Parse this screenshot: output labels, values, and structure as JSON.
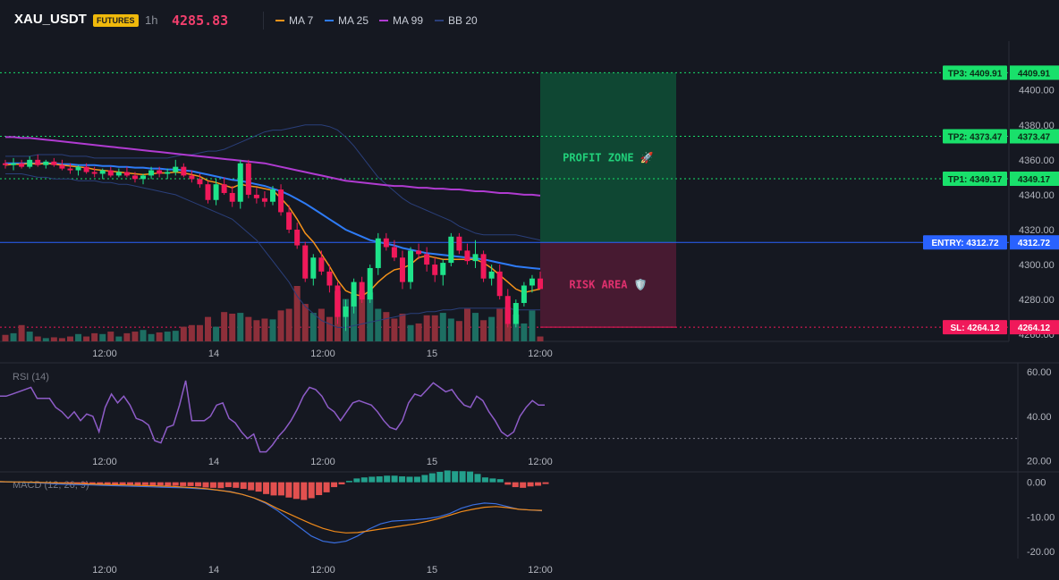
{
  "header": {
    "symbol": "XAU_USDT",
    "badge": "FUTURES",
    "interval": "1h",
    "last_price": "4285.83",
    "indicators": [
      {
        "label": "MA 7",
        "color": "#f7931a"
      },
      {
        "label": "MA 25",
        "color": "#2e7bf6"
      },
      {
        "label": "MA 99",
        "color": "#b03bd1"
      },
      {
        "label": "BB 20",
        "color": "#2a3f7a"
      }
    ]
  },
  "colors": {
    "up": "#1ee38a",
    "down": "#f0195a",
    "vol_up": "#1d6e62",
    "vol_down": "#8d2f3a",
    "tp_green": "#19e06b",
    "entry_blue": "#2962ff",
    "sl_red": "#f0195a",
    "profit_zone": "#0f4a35",
    "risk_zone": "#4a1a33",
    "rsi": "#8e5cc8",
    "macd_line": "#3a6fe0",
    "signal_line": "#f08a1a",
    "hist_pos": "#23a08c",
    "hist_neg": "#e2504f"
  },
  "chart_data": [
    {
      "type": "candlestick",
      "title": "XAU_USDT 1h",
      "x_tick_labels": [
        "12:00",
        "14",
        "12:00",
        "15",
        "12:00"
      ],
      "y_tick_labels": [
        "4400.00",
        "4380.00",
        "4360.00",
        "4340.00",
        "4320.00",
        "4300.00",
        "4280.00",
        "4260.00"
      ],
      "ylim": [
        4256,
        4428
      ],
      "candles": [
        [
          4358,
          4360,
          4355,
          4357
        ],
        [
          4357,
          4361,
          4354,
          4358
        ],
        [
          4358,
          4360,
          4355,
          4356
        ],
        [
          4356,
          4362,
          4355,
          4360
        ],
        [
          4360,
          4363,
          4356,
          4357
        ],
        [
          4357,
          4360,
          4355,
          4359
        ],
        [
          4359,
          4361,
          4356,
          4357
        ],
        [
          4357,
          4360,
          4354,
          4355
        ],
        [
          4355,
          4358,
          4352,
          4354
        ],
        [
          4354,
          4357,
          4351,
          4356
        ],
        [
          4356,
          4358,
          4352,
          4353
        ],
        [
          4353,
          4356,
          4350,
          4352
        ],
        [
          4352,
          4355,
          4349,
          4354
        ],
        [
          4354,
          4356,
          4350,
          4351
        ],
        [
          4351,
          4355,
          4350,
          4353
        ],
        [
          4353,
          4356,
          4350,
          4351
        ],
        [
          4351,
          4353,
          4347,
          4349
        ],
        [
          4349,
          4352,
          4346,
          4351
        ],
        [
          4351,
          4356,
          4349,
          4354
        ],
        [
          4354,
          4356,
          4350,
          4352
        ],
        [
          4352,
          4355,
          4349,
          4353
        ],
        [
          4353,
          4360,
          4351,
          4356
        ],
        [
          4356,
          4358,
          4350,
          4351
        ],
        [
          4351,
          4354,
          4347,
          4349
        ],
        [
          4349,
          4352,
          4344,
          4346
        ],
        [
          4346,
          4348,
          4335,
          4337
        ],
        [
          4337,
          4349,
          4334,
          4346
        ],
        [
          4346,
          4350,
          4340,
          4341
        ],
        [
          4341,
          4345,
          4333,
          4336
        ],
        [
          4336,
          4360,
          4332,
          4358
        ],
        [
          4358,
          4360,
          4338,
          4340
        ],
        [
          4340,
          4344,
          4335,
          4338
        ],
        [
          4338,
          4342,
          4333,
          4336
        ],
        [
          4336,
          4345,
          4334,
          4343
        ],
        [
          4343,
          4346,
          4328,
          4330
        ],
        [
          4330,
          4334,
          4318,
          4320
        ],
        [
          4320,
          4324,
          4309,
          4311
        ],
        [
          4311,
          4313,
          4290,
          4292
        ],
        [
          4292,
          4306,
          4288,
          4304
        ],
        [
          4304,
          4308,
          4294,
          4296
        ],
        [
          4296,
          4300,
          4284,
          4288
        ],
        [
          4288,
          4290,
          4266,
          4270
        ],
        [
          4270,
          4280,
          4262,
          4276
        ],
        [
          4276,
          4292,
          4272,
          4290
        ],
        [
          4290,
          4293,
          4278,
          4280
        ],
        [
          4280,
          4300,
          4278,
          4298
        ],
        [
          4298,
          4318,
          4294,
          4315
        ],
        [
          4315,
          4318,
          4308,
          4310
        ],
        [
          4310,
          4314,
          4302,
          4304
        ],
        [
          4304,
          4308,
          4286,
          4290
        ],
        [
          4290,
          4310,
          4286,
          4308
        ],
        [
          4308,
          4312,
          4303,
          4306
        ],
        [
          4306,
          4310,
          4296,
          4300
        ],
        [
          4300,
          4304,
          4290,
          4294
        ],
        [
          4294,
          4303,
          4288,
          4301
        ],
        [
          4301,
          4318,
          4299,
          4316
        ],
        [
          4316,
          4318,
          4306,
          4308
        ],
        [
          4308,
          4312,
          4300,
          4302
        ],
        [
          4302,
          4314,
          4298,
          4306
        ],
        [
          4306,
          4308,
          4290,
          4292
        ],
        [
          4292,
          4300,
          4288,
          4296
        ],
        [
          4296,
          4300,
          4280,
          4282
        ],
        [
          4282,
          4286,
          4264,
          4266
        ],
        [
          4266,
          4280,
          4264,
          4278
        ],
        [
          4278,
          4290,
          4276,
          4288
        ],
        [
          4288,
          4294,
          4284,
          4292
        ],
        [
          4292,
          4296,
          4286,
          4286
        ]
      ],
      "volume": [
        8,
        10,
        20,
        12,
        6,
        4,
        5,
        4,
        6,
        9,
        6,
        10,
        9,
        12,
        6,
        10,
        12,
        14,
        9,
        11,
        12,
        13,
        18,
        20,
        20,
        30,
        18,
        36,
        34,
        35,
        30,
        26,
        28,
        27,
        38,
        40,
        68,
        46,
        35,
        40,
        30,
        62,
        52,
        58,
        62,
        60,
        40,
        36,
        28,
        34,
        20,
        22,
        32,
        32,
        35,
        28,
        25,
        40,
        35,
        26,
        30,
        40,
        42,
        33,
        22,
        38,
        6
      ],
      "ma7": [
        4357,
        4357.5,
        4357.5,
        4358,
        4357.5,
        4358,
        4357.5,
        4357,
        4356.5,
        4356,
        4355.5,
        4354.5,
        4354,
        4353.5,
        4353,
        4352.5,
        4352,
        4351.5,
        4352,
        4352.5,
        4352.5,
        4353,
        4352.5,
        4351.5,
        4350.5,
        4348,
        4347,
        4345.5,
        4344,
        4346,
        4345,
        4344.5,
        4343.5,
        4342.5,
        4338,
        4333,
        4326,
        4318,
        4313,
        4306,
        4299,
        4291,
        4285,
        4283,
        4282,
        4285,
        4290,
        4294,
        4297,
        4298,
        4300,
        4304,
        4305,
        4304,
        4303,
        4303,
        4303,
        4303,
        4303,
        4301,
        4298,
        4294,
        4290,
        4286,
        4284,
        4285,
        4286
      ],
      "ma25": [
        4358,
        4358,
        4358,
        4358,
        4358,
        4358,
        4358,
        4357.5,
        4357.5,
        4357,
        4357,
        4357,
        4356.5,
        4356.5,
        4356,
        4356,
        4355.5,
        4355.5,
        4355,
        4355,
        4354.5,
        4354.5,
        4354,
        4353.5,
        4352.5,
        4351.5,
        4350.5,
        4349.5,
        4348.5,
        4348,
        4347,
        4346,
        4345,
        4343.5,
        4342,
        4340,
        4337.5,
        4335,
        4332,
        4329,
        4326,
        4323,
        4320,
        4318,
        4316,
        4314,
        4313,
        4312,
        4311,
        4309.5,
        4308.5,
        4307.5,
        4306.5,
        4306,
        4305.5,
        4305,
        4304.5,
        4304,
        4303.5,
        4303,
        4302,
        4301,
        4300,
        4299,
        4298.5,
        4298,
        4297.5
      ],
      "ma99": [
        4373,
        4373,
        4372.5,
        4372.5,
        4372,
        4371.5,
        4371,
        4370.5,
        4370,
        4369.5,
        4369,
        4368.5,
        4368,
        4367.5,
        4367,
        4366.5,
        4366,
        4365.5,
        4365,
        4364.5,
        4364,
        4363.5,
        4363,
        4362.5,
        4362,
        4361.5,
        4361,
        4360.5,
        4360,
        4359.5,
        4359,
        4358.5,
        4358,
        4357,
        4356,
        4355,
        4354,
        4353,
        4352,
        4351,
        4350,
        4349,
        4348,
        4347.5,
        4347,
        4346.5,
        4346,
        4345.5,
        4345,
        4345,
        4344.5,
        4344,
        4344,
        4343.5,
        4343.5,
        4343,
        4343,
        4342.5,
        4342,
        4342,
        4341.5,
        4341,
        4341,
        4340.5,
        4340,
        4340,
        4339.5
      ],
      "bb_upper": [
        4362,
        4362,
        4362,
        4362,
        4363,
        4363,
        4363,
        4363,
        4362,
        4362,
        4362,
        4361,
        4361,
        4361,
        4361,
        4361,
        4361,
        4361,
        4361,
        4361,
        4361,
        4362,
        4363,
        4363,
        4364,
        4365,
        4365,
        4366,
        4368,
        4370,
        4372,
        4374,
        4376,
        4377,
        4377,
        4378,
        4379,
        4380,
        4380,
        4380,
        4379,
        4377,
        4373,
        4368,
        4362,
        4356,
        4350,
        4346,
        4342,
        4338,
        4335,
        4333,
        4331,
        4329,
        4327,
        4325,
        4322,
        4320,
        4318,
        4317,
        4317,
        4317,
        4317,
        4317,
        4316,
        4315,
        4314
      ],
      "bb_lower": [
        4352,
        4352,
        4352,
        4351,
        4350,
        4350,
        4349,
        4349,
        4349,
        4348,
        4348,
        4348,
        4347,
        4347,
        4346,
        4346,
        4345,
        4344,
        4343,
        4342,
        4341,
        4340,
        4338,
        4336,
        4334,
        4332,
        4330,
        4328,
        4326,
        4322,
        4318,
        4314,
        4308,
        4302,
        4296,
        4290,
        4282,
        4276,
        4272,
        4268,
        4266,
        4264,
        4264,
        4265,
        4266,
        4267,
        4268,
        4269,
        4270,
        4271,
        4272,
        4272,
        4273,
        4273,
        4274,
        4274,
        4275,
        4275,
        4275,
        4275,
        4275,
        4275,
        4275,
        4274,
        4274,
        4274,
        4274
      ],
      "levels": [
        {
          "name": "TP3",
          "label": "TP3: 4409.91",
          "price_label": "4409.91",
          "value": 4409.91
        },
        {
          "name": "TP2",
          "label": "TP2: 4373.47",
          "price_label": "4373.47",
          "value": 4373.47
        },
        {
          "name": "TP1",
          "label": "TP1: 4349.17",
          "price_label": "4349.17",
          "value": 4349.17
        },
        {
          "name": "ENTRY",
          "label": "ENTRY: 4312.72",
          "price_label": "4312.72",
          "value": 4312.72
        },
        {
          "name": "SL",
          "label": "SL: 4264.12",
          "price_label": "4264.12",
          "value": 4264.12
        }
      ],
      "zones": {
        "profit_label": "PROFIT ZONE 🚀",
        "risk_label": "RISK AREA 🛡️"
      }
    },
    {
      "type": "line",
      "title": "RSI (14)",
      "ylim": [
        15,
        64
      ],
      "y_tick_labels": [
        "60.00",
        "40.00",
        "20.00"
      ],
      "reference_line": 30,
      "values": [
        49,
        49,
        50,
        51,
        52,
        53,
        48,
        48,
        48,
        44,
        42,
        39,
        42,
        38,
        41,
        40,
        33,
        44,
        50,
        46,
        49,
        45,
        39,
        38,
        36,
        29,
        28,
        35,
        36,
        45,
        56,
        38,
        38,
        38,
        40,
        45,
        46,
        39,
        37,
        33,
        30,
        32,
        24,
        24,
        27,
        31,
        34,
        38,
        43,
        49,
        53,
        52,
        49,
        44,
        42,
        38,
        42,
        46,
        47,
        46,
        45,
        42,
        38,
        35,
        34,
        38,
        46,
        50,
        49,
        52,
        55,
        53,
        51,
        52,
        48,
        45,
        44,
        49,
        47,
        42,
        38,
        33,
        31,
        33,
        40,
        44,
        47,
        45,
        45
      ]
    },
    {
      "type": "bar",
      "title": "MACD (12, 26, 9)",
      "ylim": [
        -22,
        3
      ],
      "y_tick_labels": [
        "0.00",
        "-10.00",
        "-20.00"
      ],
      "histogram": [
        0.3,
        0.3,
        0.2,
        0.1,
        0,
        -0.2,
        -0.3,
        -0.3,
        -0.4,
        -0.4,
        -0.5,
        -0.5,
        -0.5,
        -0.6,
        -0.6,
        -0.7,
        -0.7,
        -0.7,
        -0.8,
        -0.8,
        -0.9,
        -0.9,
        -1,
        -1,
        -1.1,
        -1.1,
        -1.2,
        -1.5,
        -1.6,
        -1.7,
        -1.4,
        -1.6,
        -1.9,
        -2.3,
        -2.7,
        -3.4,
        -3.8,
        -3.8,
        -4.4,
        -4.8,
        -5.1,
        -4.6,
        -3.7,
        -2.9,
        -1.4,
        -0.6,
        0.4,
        1.1,
        1.4,
        1.6,
        1.7,
        1.9,
        1.9,
        1.7,
        1.6,
        1.6,
        2.1,
        2.6,
        3,
        3.4,
        3.2,
        3.2,
        3.1,
        2.4,
        1.4,
        1.1,
        0.9,
        -0.7,
        -1.4,
        -1.6,
        -1.2,
        -1,
        -0.5
      ],
      "macd": [
        0.1,
        0.1,
        0,
        -0.1,
        -0.3,
        -0.5,
        -0.6,
        -0.7,
        -0.8,
        -0.9,
        -1,
        -1.1,
        -1.2,
        -1.3,
        -1.4,
        -1.5,
        -1.6,
        -1.8,
        -2,
        -2.3,
        -2.7,
        -3.5,
        -4.5,
        -6,
        -8,
        -10.5,
        -13,
        -15.5,
        -17,
        -17.5,
        -17,
        -15.5,
        -13.5,
        -12,
        -11.2,
        -11,
        -10.8,
        -10.5,
        -10,
        -9,
        -7.5,
        -6.5,
        -6,
        -6.2,
        -7,
        -7.8,
        -8,
        -8.2
      ],
      "signal": [
        0.2,
        0.1,
        0.1,
        0,
        -0.1,
        -0.2,
        -0.3,
        -0.4,
        -0.5,
        -0.6,
        -0.7,
        -0.8,
        -0.9,
        -1,
        -1.1,
        -1.2,
        -1.4,
        -1.6,
        -1.9,
        -2.3,
        -2.8,
        -3.5,
        -4.5,
        -5.8,
        -7.5,
        -9,
        -10.5,
        -12,
        -13.3,
        -14.2,
        -14.6,
        -14.5,
        -14,
        -13.5,
        -13,
        -12.5,
        -12,
        -11.3,
        -10.5,
        -9.5,
        -8.5,
        -7.8,
        -7.2,
        -7,
        -7.3,
        -7.8,
        -8,
        -8.1
      ]
    }
  ]
}
